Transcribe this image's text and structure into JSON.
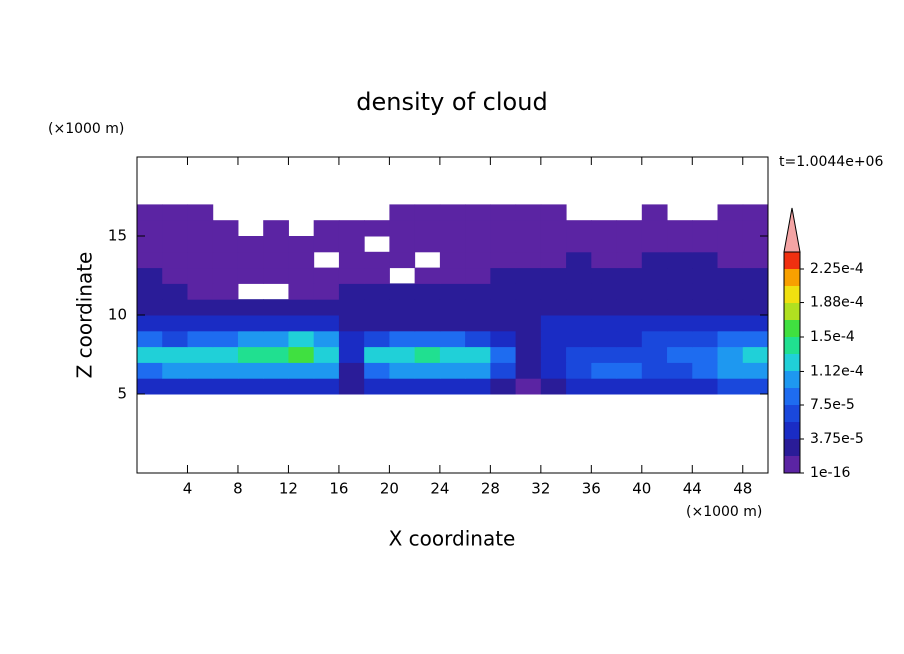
{
  "chart_data": {
    "type": "contour",
    "title": "density of cloud",
    "xlabel": "X coordinate",
    "ylabel": "Z coordinate",
    "x_unit": "(×1000 m)",
    "y_unit": "(×1000 m)",
    "annotation": "t=1.0044e+06",
    "xlim": [
      0,
      50
    ],
    "ylim": [
      0,
      20
    ],
    "xticks": [
      4,
      8,
      12,
      16,
      20,
      24,
      28,
      32,
      36,
      40,
      44,
      48
    ],
    "yticks": [
      5,
      10,
      15
    ],
    "x": [
      1,
      3,
      5,
      7,
      9,
      11,
      13,
      15,
      17,
      19,
      21,
      23,
      25,
      27,
      29,
      31,
      33,
      35,
      37,
      39,
      41,
      43,
      45,
      47,
      49
    ],
    "y": [
      5.5,
      6.5,
      7.5,
      8.5,
      9.5,
      10.5,
      11.5,
      12.5,
      13.5,
      14.5,
      15.5,
      16.5
    ],
    "z": [
      [
        4e-05,
        4e-05,
        4.5e-05,
        5e-05,
        5e-05,
        5e-05,
        5e-05,
        4.5e-05,
        2e-05,
        4e-05,
        5e-05,
        5e-05,
        5e-05,
        5e-05,
        2e-05,
        1e-05,
        2e-05,
        4e-05,
        4e-05,
        4e-05,
        4e-05,
        4e-05,
        5e-05,
        6e-05,
        6e-05
      ],
      [
        9e-05,
        0.0001,
        0.0001,
        0.000105,
        0.00011,
        0.00011,
        0.00011,
        0.0001,
        3e-05,
        9e-05,
        0.0001,
        0.000105,
        0.00011,
        0.0001,
        6e-05,
        2e-05,
        4e-05,
        6e-05,
        8e-05,
        8e-05,
        6e-05,
        6e-05,
        8e-05,
        0.0001,
        0.0001
      ],
      [
        0.00013,
        0.000125,
        0.00013,
        0.00013,
        0.000135,
        0.00014,
        0.00015,
        0.00013,
        5e-05,
        0.00012,
        0.00013,
        0.000135,
        0.00013,
        0.00012,
        8e-05,
        3e-05,
        5e-05,
        6e-05,
        7e-05,
        7e-05,
        7e-05,
        8e-05,
        9e-05,
        0.00011,
        0.00013
      ],
      [
        8e-05,
        7e-05,
        8e-05,
        9e-05,
        0.0001,
        0.00011,
        0.00012,
        0.0001,
        4e-05,
        6e-05,
        8e-05,
        9e-05,
        8e-05,
        6e-05,
        4e-05,
        3e-05,
        4e-05,
        5e-05,
        4e-05,
        5e-05,
        6e-05,
        6e-05,
        7e-05,
        8e-05,
        8e-05
      ],
      [
        5e-05,
        4e-05,
        4e-05,
        4e-05,
        4e-05,
        4e-05,
        4e-05,
        4e-05,
        3e-05,
        3e-05,
        3e-05,
        3e-05,
        3e-05,
        3e-05,
        3e-05,
        3e-05,
        4e-05,
        4e-05,
        4e-05,
        4e-05,
        4e-05,
        5e-05,
        5e-05,
        5e-05,
        5e-05
      ],
      [
        3e-05,
        3e-05,
        3e-05,
        2.5e-05,
        2.5e-05,
        2.5e-05,
        2.5e-05,
        2.5e-05,
        2.5e-05,
        2.5e-05,
        2.5e-05,
        2.5e-05,
        2.5e-05,
        2.5e-05,
        2.5e-05,
        2.5e-05,
        3e-05,
        3e-05,
        3e-05,
        3e-05,
        3e-05,
        3e-05,
        3.5e-05,
        3.5e-05,
        3.5e-05
      ],
      [
        2.5e-05,
        2e-05,
        1e-05,
        1e-05,
        null,
        null,
        1e-05,
        1e-05,
        2e-05,
        2e-05,
        2e-05,
        2e-05,
        2e-05,
        2e-05,
        2e-05,
        2e-05,
        2e-05,
        2.5e-05,
        2.5e-05,
        2.5e-05,
        2e-05,
        2e-05,
        2.5e-05,
        2.5e-05,
        2.5e-05
      ],
      [
        2e-05,
        1e-05,
        1e-05,
        1e-05,
        1e-05,
        1e-05,
        1e-05,
        1e-05,
        1e-05,
        1e-05,
        null,
        1e-05,
        1e-05,
        1e-05,
        2e-05,
        2e-05,
        2e-05,
        2e-05,
        2e-05,
        2e-05,
        2e-05,
        2e-05,
        2e-05,
        2e-05,
        2e-05
      ],
      [
        1e-05,
        1e-05,
        1e-05,
        1e-05,
        1e-05,
        1e-05,
        1e-05,
        null,
        1e-05,
        1e-05,
        1e-05,
        null,
        1e-05,
        1e-05,
        1e-05,
        1e-05,
        1e-05,
        2e-05,
        1e-05,
        1e-05,
        2e-05,
        2e-05,
        2e-05,
        1e-05,
        1e-05
      ],
      [
        1e-05,
        1e-05,
        1e-05,
        1e-05,
        1e-05,
        1e-05,
        1e-05,
        1e-05,
        1e-05,
        null,
        1e-05,
        1e-05,
        1e-05,
        1e-05,
        1e-05,
        1e-05,
        1e-05,
        1e-05,
        1e-05,
        1e-05,
        1e-05,
        1e-05,
        1e-05,
        1e-05,
        1e-05
      ],
      [
        1e-05,
        1e-05,
        1e-05,
        1e-05,
        null,
        1e-05,
        null,
        1e-05,
        1e-05,
        1e-05,
        1e-05,
        1e-05,
        1e-05,
        1e-05,
        1e-05,
        1e-05,
        1e-05,
        1e-05,
        1e-05,
        1e-05,
        1e-05,
        1e-05,
        1e-05,
        1e-05,
        1e-05
      ],
      [
        1e-05,
        1e-05,
        1e-05,
        null,
        null,
        null,
        null,
        null,
        null,
        null,
        1e-05,
        1e-05,
        1e-05,
        1e-05,
        1e-05,
        1e-05,
        1e-05,
        null,
        null,
        null,
        1e-05,
        null,
        null,
        1e-05,
        1e-05
      ]
    ],
    "levels": [
      1e-16,
      1.875e-05,
      3.75e-05,
      5.625e-05,
      7.5e-05,
      9.375e-05,
      0.0001125,
      0.00013125,
      0.00015,
      0.00016875,
      0.0001875,
      0.00020625,
      0.000225,
      0.00024375
    ],
    "colors": [
      "#5b24a3",
      "#2a1c98",
      "#1a2cc4",
      "#1a48dc",
      "#1e6cf0",
      "#1e98f0",
      "#20d0d8",
      "#20e090",
      "#40e040",
      "#b0e020",
      "#f0e010",
      "#f8a000",
      "#f03010"
    ],
    "extend_color": "#f4a4a4",
    "colorbar_ticks": [
      {
        "value": 1e-16,
        "label": "1e-16"
      },
      {
        "value": 3.75e-05,
        "label": "3.75e-5"
      },
      {
        "value": 7.5e-05,
        "label": "7.5e-5"
      },
      {
        "value": 0.000112,
        "label": "1.12e-4"
      },
      {
        "value": 0.00015,
        "label": "1.5e-4"
      },
      {
        "value": 0.000188,
        "label": "1.88e-4"
      },
      {
        "value": 0.000225,
        "label": "2.25e-4"
      }
    ]
  }
}
